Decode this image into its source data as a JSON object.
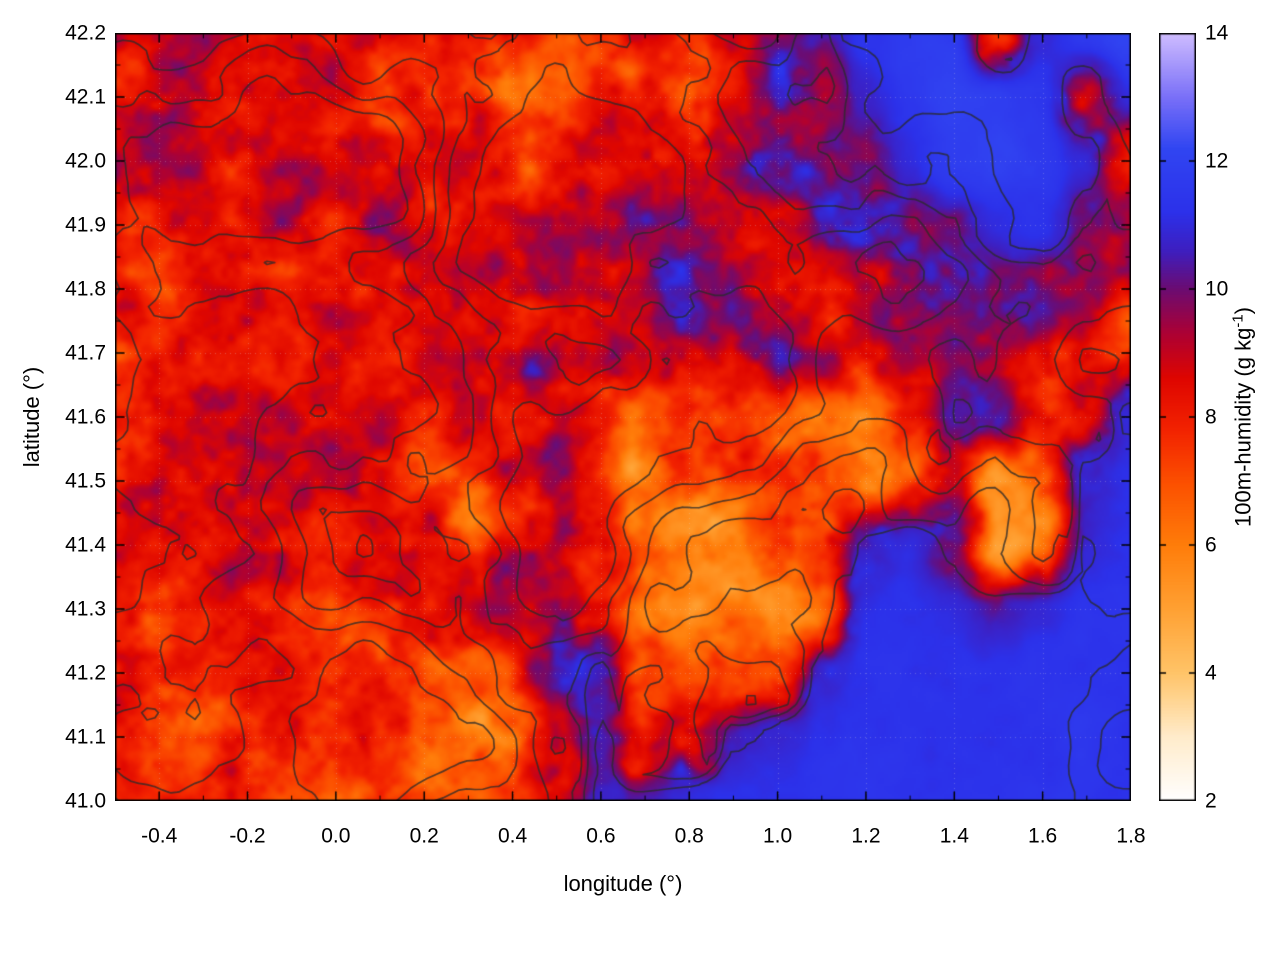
{
  "figure": {
    "background": "#ffffff"
  },
  "chart_data": {
    "type": "heatmap",
    "title": "",
    "xlabel": "longitude (°)",
    "ylabel": "latitude (°)",
    "colorbar_label": "100m-humidity (g kg⁻¹)",
    "colorbar_label_parts": {
      "prefix": "100m-humidity (g kg",
      "sup": "-1",
      "suffix": ")"
    },
    "x_range": [
      -0.5,
      1.8
    ],
    "y_range": [
      41.0,
      42.2
    ],
    "c_range": [
      2,
      14
    ],
    "x_ticks": [
      -0.4,
      -0.2,
      0.0,
      0.2,
      0.4,
      0.6,
      0.8,
      1.0,
      1.2,
      1.4,
      1.6,
      1.8
    ],
    "y_ticks": [
      41.0,
      41.1,
      41.2,
      41.3,
      41.4,
      41.5,
      41.6,
      41.7,
      41.8,
      41.9,
      42.0,
      42.1,
      42.2
    ],
    "c_ticks": [
      2,
      4,
      6,
      8,
      10,
      12,
      14
    ],
    "grid_on": true,
    "legend": "colorbar-right",
    "grid_lons": [
      -0.5,
      -0.4,
      -0.3,
      -0.2,
      -0.1,
      0.0,
      0.1,
      0.2,
      0.3,
      0.4,
      0.5,
      0.6,
      0.7,
      0.8,
      0.9,
      1.0,
      1.1,
      1.2,
      1.3,
      1.4,
      1.5,
      1.6,
      1.7,
      1.8
    ],
    "grid_lats": [
      42.2,
      42.1,
      42.0,
      41.9,
      41.8,
      41.7,
      41.6,
      41.5,
      41.4,
      41.3,
      41.2,
      41.1,
      41.0
    ],
    "humidity_grid": [
      [
        8.6,
        8.6,
        8.5,
        8.6,
        8.6,
        8.6,
        8.5,
        8.6,
        8.5,
        8.3,
        7.2,
        7.8,
        8.6,
        8.0,
        9.2,
        9.8,
        10.2,
        11.4,
        11.8,
        11.6,
        7.5,
        10.8,
        11.8,
        12.0
      ],
      [
        8.6,
        8.6,
        8.6,
        8.6,
        8.7,
        8.6,
        8.5,
        8.5,
        8.3,
        6.8,
        7.0,
        8.2,
        8.5,
        7.2,
        8.8,
        9.6,
        10.0,
        10.8,
        11.5,
        12.0,
        11.8,
        11.4,
        8.5,
        11.0
      ],
      [
        8.6,
        8.7,
        8.6,
        8.7,
        8.6,
        8.6,
        8.5,
        8.5,
        8.4,
        7.2,
        8.3,
        8.5,
        8.4,
        8.6,
        9.2,
        9.6,
        9.9,
        10.2,
        11.0,
        11.8,
        12.0,
        11.6,
        10.8,
        7.8
      ],
      [
        8.6,
        8.6,
        8.7,
        8.6,
        8.6,
        8.5,
        8.5,
        8.4,
        8.4,
        8.5,
        8.8,
        9.4,
        9.6,
        9.4,
        9.0,
        9.2,
        9.6,
        9.8,
        10.0,
        10.4,
        11.0,
        11.2,
        10.0,
        9.0
      ],
      [
        8.3,
        7.8,
        8.6,
        8.6,
        8.5,
        8.5,
        8.5,
        8.4,
        8.4,
        8.6,
        9.6,
        9.2,
        9.5,
        9.6,
        9.2,
        8.6,
        9.0,
        9.4,
        9.8,
        10.0,
        10.0,
        9.6,
        8.6,
        8.0
      ],
      [
        7.8,
        8.4,
        8.6,
        8.6,
        8.5,
        8.5,
        8.4,
        8.5,
        8.5,
        8.4,
        9.2,
        9.6,
        8.8,
        8.8,
        9.0,
        9.2,
        8.6,
        8.2,
        9.6,
        10.0,
        9.4,
        8.4,
        7.6,
        7.2
      ],
      [
        8.2,
        8.5,
        8.6,
        8.5,
        8.5,
        8.5,
        8.4,
        8.2,
        8.5,
        8.4,
        8.6,
        7.8,
        6.8,
        7.2,
        8.0,
        7.6,
        6.6,
        6.2,
        8.2,
        10.4,
        9.8,
        8.0,
        8.8,
        10.8
      ],
      [
        8.4,
        8.5,
        8.5,
        8.6,
        8.5,
        8.4,
        8.3,
        7.6,
        7.0,
        8.2,
        8.6,
        7.2,
        6.2,
        6.6,
        7.0,
        7.0,
        6.2,
        5.8,
        7.2,
        9.2,
        5.2,
        6.8,
        10.6,
        11.2
      ],
      [
        8.4,
        8.4,
        8.5,
        8.5,
        8.4,
        8.3,
        8.0,
        7.8,
        7.2,
        9.0,
        9.4,
        8.2,
        6.2,
        5.6,
        6.6,
        6.8,
        6.6,
        10.2,
        11.0,
        9.8,
        5.0,
        6.0,
        10.8,
        11.2
      ],
      [
        8.2,
        8.0,
        8.3,
        8.4,
        8.3,
        8.2,
        8.0,
        7.8,
        8.2,
        9.4,
        9.8,
        8.2,
        6.0,
        5.4,
        6.2,
        5.6,
        6.8,
        11.0,
        11.2,
        11.0,
        10.6,
        11.0,
        11.2,
        11.3
      ],
      [
        7.8,
        7.6,
        7.8,
        8.0,
        8.0,
        7.8,
        7.8,
        7.6,
        7.6,
        7.2,
        9.4,
        10.4,
        7.2,
        6.8,
        7.6,
        8.2,
        10.6,
        11.2,
        11.3,
        11.3,
        11.2,
        11.3,
        11.3,
        11.4
      ],
      [
        7.6,
        7.3,
        7.1,
        7.6,
        7.8,
        7.6,
        7.3,
        7.1,
        6.9,
        6.6,
        8.6,
        10.4,
        8.2,
        7.6,
        10.6,
        11.0,
        11.2,
        11.3,
        11.3,
        11.3,
        11.3,
        11.3,
        11.4,
        11.4
      ],
      [
        7.9,
        7.6,
        7.3,
        7.9,
        7.6,
        7.3,
        7.1,
        6.9,
        6.6,
        7.1,
        9.0,
        10.8,
        10.6,
        11.0,
        11.2,
        11.2,
        11.3,
        11.3,
        11.3,
        11.3,
        11.3,
        11.4,
        11.4,
        11.4
      ]
    ],
    "palette": [
      {
        "v": 2.0,
        "color": "#ffffff"
      },
      {
        "v": 3.0,
        "color": "#ffeccb"
      },
      {
        "v": 4.0,
        "color": "#ffc468"
      },
      {
        "v": 5.0,
        "color": "#ffa133"
      },
      {
        "v": 6.0,
        "color": "#ff7d0a"
      },
      {
        "v": 7.0,
        "color": "#fc4f00"
      },
      {
        "v": 7.8,
        "color": "#f32300"
      },
      {
        "v": 8.6,
        "color": "#df0600"
      },
      {
        "v": 9.3,
        "color": "#ad0134"
      },
      {
        "v": 10.0,
        "color": "#6c0c72"
      },
      {
        "v": 10.6,
        "color": "#3e1fc0"
      },
      {
        "v": 11.2,
        "color": "#2c31ea"
      },
      {
        "v": 12.2,
        "color": "#3146f2"
      },
      {
        "v": 13.0,
        "color": "#7a70f8"
      },
      {
        "v": 14.0,
        "color": "#cfbdff"
      }
    ],
    "contours": {
      "color": "#2a2a2a",
      "levels": [
        0.3,
        0.4,
        0.5,
        0.6,
        0.7
      ]
    },
    "axis_color": "#000000",
    "gridline_color": "#c8c8c8"
  }
}
